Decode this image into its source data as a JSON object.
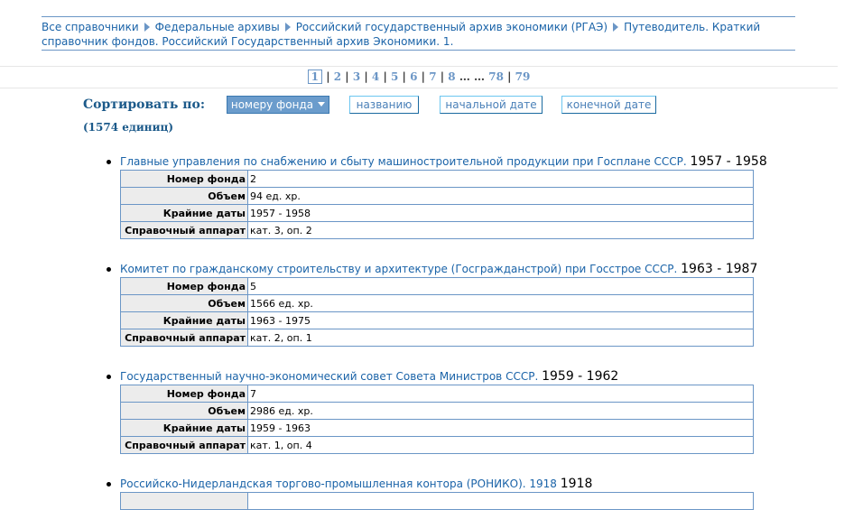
{
  "breadcrumb": [
    "Все справочники",
    "Федеральные архивы",
    "Российский государственный архив экономики (РГАЭ)",
    "Путеводитель. Краткий справочник фондов. Российский Государственный архив Экономики. 1."
  ],
  "pager": {
    "current": "1",
    "pages": [
      "2",
      "3",
      "4",
      "5",
      "6",
      "7",
      "8"
    ],
    "ellipsis": "… …",
    "last": [
      "78",
      "79"
    ]
  },
  "sort": {
    "label": "Сортировать по:",
    "count": "(1574 единиц)",
    "buttons": [
      "номеру фонда",
      "названию",
      "начальной дате",
      "конечной дате"
    ],
    "active": 0
  },
  "field_labels": [
    "Номер фонда",
    "Объем",
    "Крайние даты",
    "Справочный аппарат"
  ],
  "items": [
    {
      "title": "Главные управления по снабжению и сбыту машиностроительной продукции при Госплане СССР.",
      "years": "1957 - 1958",
      "values": [
        "2",
        "94 ед. хр.",
        "1957 - 1958",
        "кат. 3, оп. 2"
      ]
    },
    {
      "title": "Комитет по гражданскому строительству и архитектуре (Госгражданстрой) при Госстрое СССР.",
      "years": "1963 - 1987",
      "values": [
        "5",
        "1566 ед. хр.",
        "1963 - 1975",
        "кат. 2, оп. 1"
      ]
    },
    {
      "title": "Государственный научно-экономический совет Совета Министров СССР.",
      "years": "1959 - 1962",
      "values": [
        "7",
        "2986 ед. хр.",
        "1959 - 1963",
        "кат. 1, оп. 4"
      ]
    },
    {
      "title": "Российско-Нидерландская торгово-промышленная контора (РОНИКО). 1918",
      "years": "1918",
      "values": []
    }
  ]
}
